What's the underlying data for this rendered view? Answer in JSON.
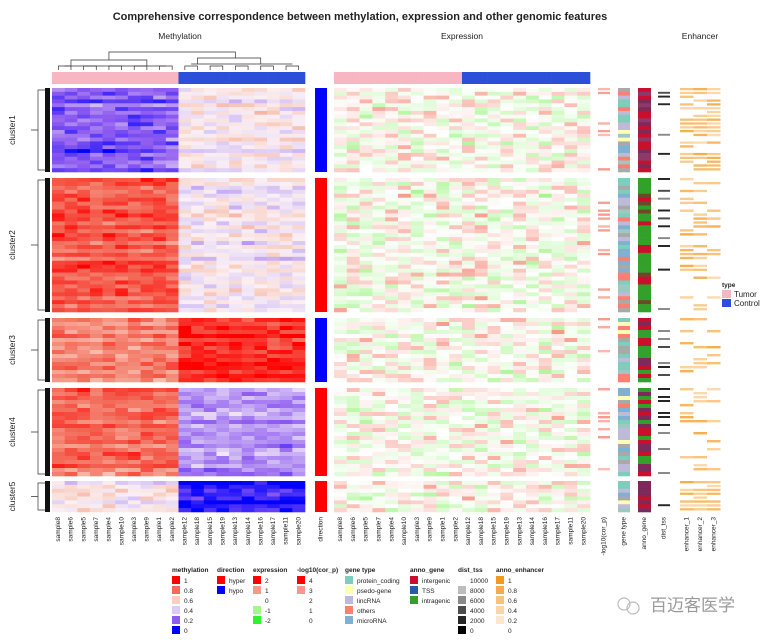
{
  "title": "Comprehensive correspondence between methylation, expression and other genomic features",
  "panels": {
    "methylation": "Methylation",
    "expression": "Expression",
    "enhancer": "Enhancer"
  },
  "watermark": "百迈客医学",
  "samples": [
    "sample8",
    "sample6",
    "sample5",
    "sample7",
    "sample4",
    "sample10",
    "sample3",
    "sample9",
    "sample1",
    "sample2",
    "sample12",
    "sample18",
    "sample15",
    "sample19",
    "sample13",
    "sample14",
    "sample16",
    "sample17",
    "sample11",
    "sample20"
  ],
  "sample_type": [
    "Tumor",
    "Tumor",
    "Tumor",
    "Tumor",
    "Tumor",
    "Tumor",
    "Tumor",
    "Tumor",
    "Tumor",
    "Tumor",
    "Control",
    "Control",
    "Control",
    "Control",
    "Control",
    "Control",
    "Control",
    "Control",
    "Control",
    "Control"
  ],
  "annotation_columns": {
    "direction": "direction",
    "log10": "-log10(cor_p)",
    "gene_type": "gene type",
    "anno_gene": "anno_gene",
    "dist_tss": "dist_tss",
    "enhancers": [
      "enhancer_1",
      "enhancer_2",
      "enhancer_3"
    ]
  },
  "colors": {
    "tumor": "#f7b6c2",
    "control": "#2b4fd8",
    "hyper": "#ff0000",
    "hypo": "#0000ff"
  },
  "chart_data": {
    "type": "heatmap",
    "row_clusters": [
      {
        "name": "cluster1",
        "direction": "hypo",
        "methylation_tumor": 0.2,
        "methylation_control": 0.5
      },
      {
        "name": "cluster2",
        "direction": "hyper",
        "methylation_tumor": 0.85,
        "methylation_control": 0.5
      },
      {
        "name": "cluster3",
        "direction": "hypo",
        "methylation_tumor": 0.75,
        "methylation_control": 0.92
      },
      {
        "name": "cluster4",
        "direction": "hyper",
        "methylation_tumor": 0.8,
        "methylation_control": 0.3
      },
      {
        "name": "cluster5",
        "direction": "hyper",
        "methylation_tumor": 0.5,
        "methylation_control": 0.05
      }
    ]
  },
  "type_legend": {
    "title": "type",
    "items": [
      {
        "label": "Tumor",
        "color": "#f7b6c2"
      },
      {
        "label": "Control",
        "color": "#2b4fd8"
      }
    ]
  },
  "legends": [
    {
      "title": "methylation",
      "items": [
        {
          "label": "1",
          "color": "#ff0000"
        },
        {
          "label": "0.8",
          "color": "#f36c5a"
        },
        {
          "label": "0.6",
          "color": "#f9cfc1"
        },
        {
          "label": "0.4",
          "color": "#dccbf5"
        },
        {
          "label": "0.2",
          "color": "#8f5cf0"
        },
        {
          "label": "0",
          "color": "#0000ff"
        }
      ]
    },
    {
      "title": "direction",
      "items": [
        {
          "label": "hyper",
          "color": "#ff0000"
        },
        {
          "label": "hypo",
          "color": "#0000ff"
        }
      ]
    },
    {
      "title": "expression",
      "items": [
        {
          "label": "2",
          "color": "#ff0000"
        },
        {
          "label": "1",
          "color": "#f7998a"
        },
        {
          "label": "0",
          "color": "#ffffff"
        },
        {
          "label": "-1",
          "color": "#a8f590"
        },
        {
          "label": "-2",
          "color": "#2cf52c"
        }
      ]
    },
    {
      "title": "-log10(cor_p)",
      "items": [
        {
          "label": "4",
          "color": "#ff0000"
        },
        {
          "label": "3",
          "color": "#f7998a"
        },
        {
          "label": "2",
          "color": "#ffffff"
        },
        {
          "label": "1",
          "color": "#ffffff"
        },
        {
          "label": "0",
          "color": "#ffffff"
        }
      ]
    },
    {
      "title": "gene type",
      "items": [
        {
          "label": "protein_coding",
          "color": "#7fcdbb"
        },
        {
          "label": "psedo-gene",
          "color": "#ffffb3"
        },
        {
          "label": "lincRNA",
          "color": "#bebada"
        },
        {
          "label": "others",
          "color": "#fb8072"
        },
        {
          "label": "microRNA",
          "color": "#80b1d3"
        }
      ]
    },
    {
      "title": "anno_gene",
      "items": [
        {
          "label": "intergenic",
          "color": "#c8102e"
        },
        {
          "label": "TSS",
          "color": "#2160a8"
        },
        {
          "label": "intragenic",
          "color": "#33a02c"
        }
      ]
    },
    {
      "title": "dist_tss",
      "items": [
        {
          "label": "10000",
          "color": "#ffffff"
        },
        {
          "label": "8000",
          "color": "#bdbdbd"
        },
        {
          "label": "6000",
          "color": "#8a8a8a"
        },
        {
          "label": "4000",
          "color": "#4d4d4d"
        },
        {
          "label": "2000",
          "color": "#262626"
        },
        {
          "label": "0",
          "color": "#000000"
        }
      ]
    },
    {
      "title": "anno_enhancer",
      "items": [
        {
          "label": "1",
          "color": "#f39a1e"
        },
        {
          "label": "0.8",
          "color": "#f5ab4a"
        },
        {
          "label": "0.6",
          "color": "#f8c27a"
        },
        {
          "label": "0.4",
          "color": "#fad6a5"
        },
        {
          "label": "0.2",
          "color": "#fce7cc"
        },
        {
          "label": "0",
          "color": "#ffffff"
        }
      ]
    }
  ]
}
